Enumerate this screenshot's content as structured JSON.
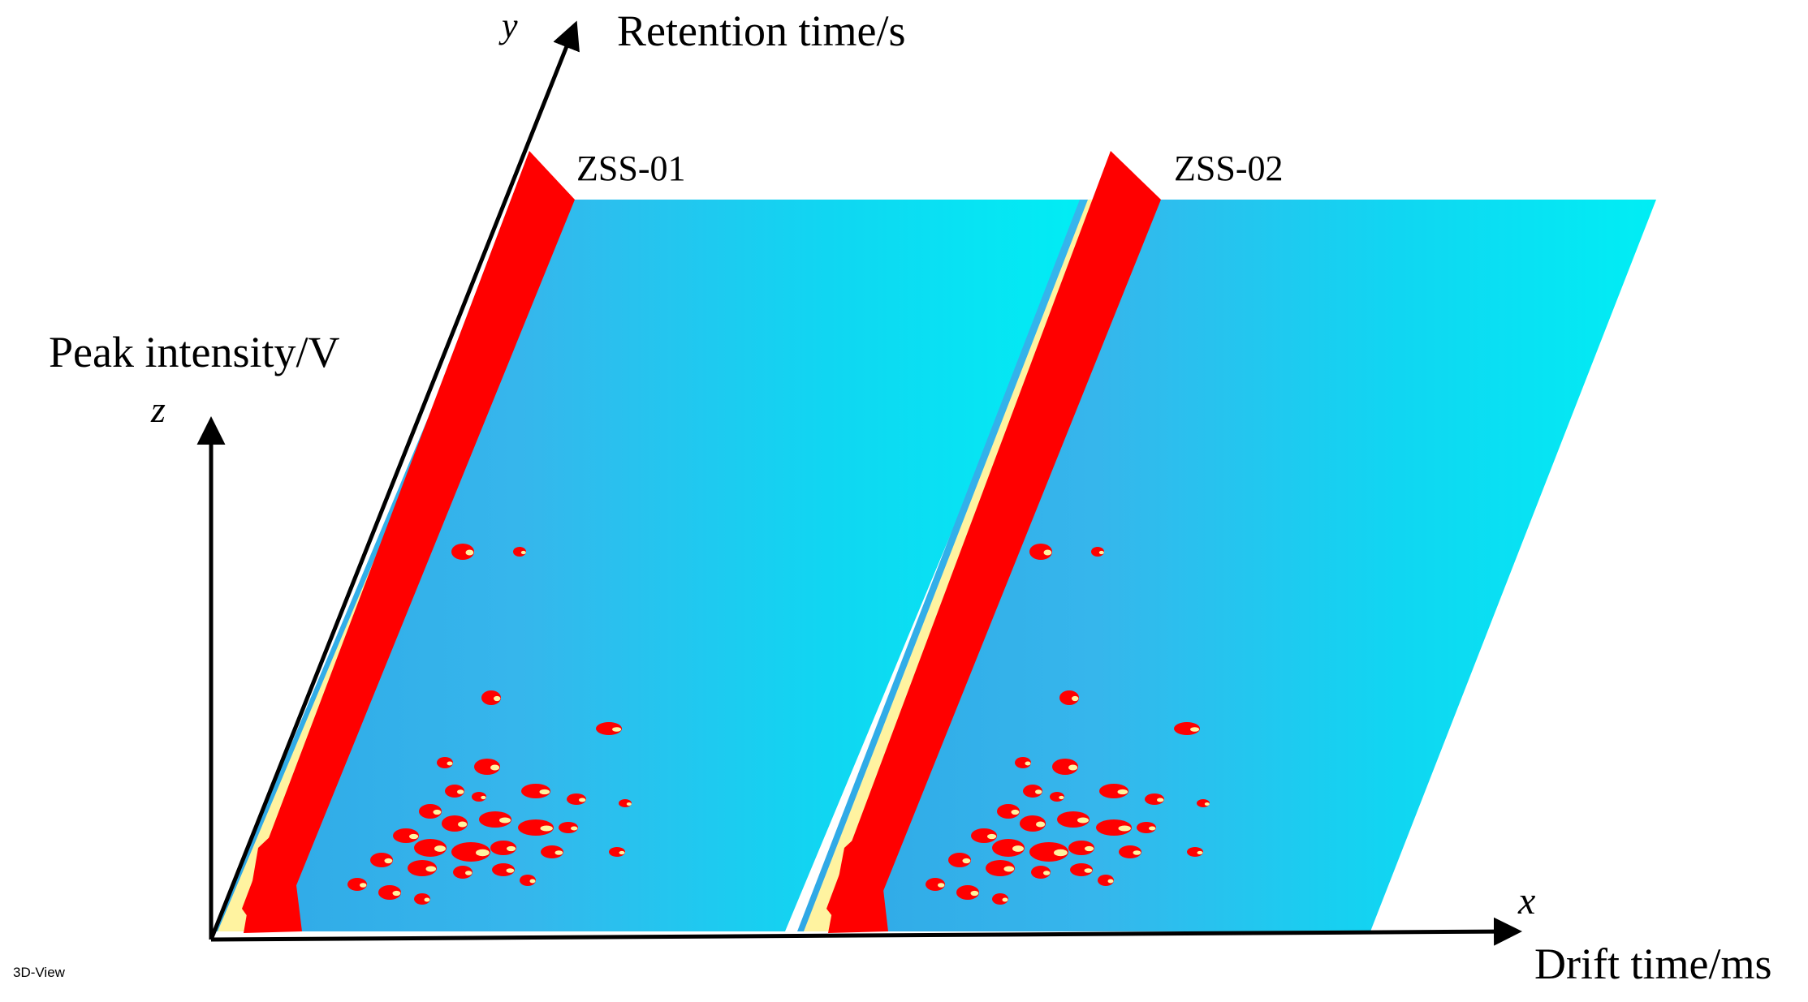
{
  "chart_data": {
    "type": "heatmap",
    "view": "3D-View",
    "axes": {
      "x": {
        "symbol": "x",
        "label": "Drift time/ms"
      },
      "y": {
        "symbol": "y",
        "label": "Retention time/s"
      },
      "z": {
        "symbol": "z",
        "label": "Peak intensity/V"
      }
    },
    "samples": [
      {
        "name": "ZSS-01"
      },
      {
        "name": "ZSS-02"
      }
    ],
    "color_scale": {
      "background": "#00e8f0",
      "low": "#3bb4ea",
      "mid": "#fff2a0",
      "high": "#ff0000"
    }
  }
}
